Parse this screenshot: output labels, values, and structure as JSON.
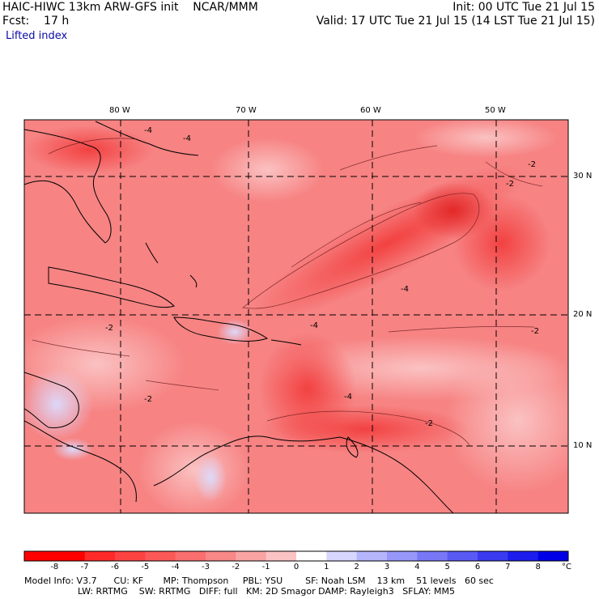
{
  "header": {
    "model_line": "HAIC-HIWC 13km ARW-GFS init    NCAR/MMM",
    "init_line": "Init: 00 UTC Tue 21 Jul 15",
    "fcst_line": "Fcst:    17 h",
    "valid_line": "Valid: 17 UTC Tue 21 Jul 15 (14 LST Tue 21 Jul 15)",
    "field_name": "Lifted index"
  },
  "map": {
    "lon_labels": [
      "80 W",
      "70 W",
      "60 W",
      "50 W"
    ],
    "lat_labels": [
      "30 N",
      "20 N",
      "10 N"
    ],
    "contour_labels": [
      "-4",
      "-4",
      "-2",
      "-2",
      "-4",
      "-2",
      "-4",
      "-4",
      "-2",
      "-2",
      "-2"
    ]
  },
  "colorbar": {
    "tick_labels": [
      "-8",
      "-7",
      "-6",
      "-5",
      "-4",
      "-3",
      "-2",
      "-1",
      "0",
      "1",
      "2",
      "3",
      "4",
      "5",
      "6",
      "7",
      "8"
    ],
    "unit": "°C",
    "colors": [
      "#ff0000",
      "#fe2a2a",
      "#fd4242",
      "#fb5858",
      "#f96e6e",
      "#f88787",
      "#f9a3a3",
      "#fbc3c3",
      "#ffffff",
      "#d6d6ff",
      "#b5b5fc",
      "#9797f9",
      "#7878f6",
      "#5959f3",
      "#3a3af0",
      "#1c1ced",
      "#0000e8"
    ]
  },
  "footer": {
    "line1": "Model Info: V3.7      CU: KF       MP: Thompson     PBL: YSU        SF: Noah LSM    13 km    51 levels   60 sec",
    "line2": "LW: RRTMG    SW: RRTMG   DIFF: full   KM: 2D Smagor DAMP: Rayleigh3   SFLAY: MM5"
  }
}
